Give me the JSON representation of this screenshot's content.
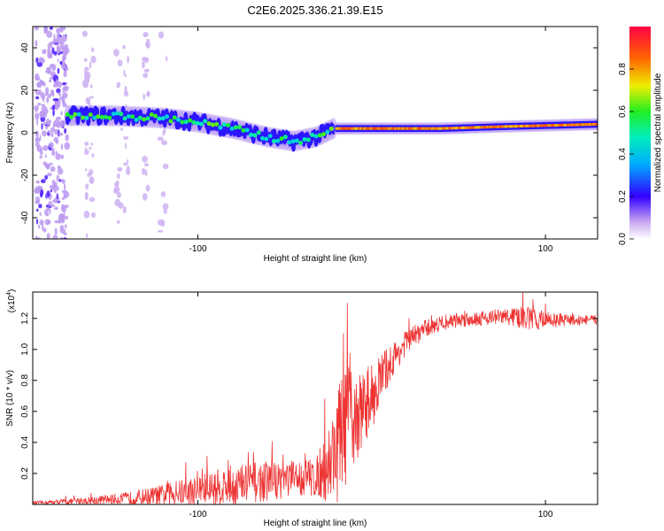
{
  "title": "C2E6.2025.336.21.39.E15",
  "chart_data": [
    {
      "type": "heatmap",
      "title": "C2E6.2025.336.21.39.E15",
      "xlabel": "Height of straight line (km)",
      "ylabel": "Frequency (Hz)",
      "xlim": [
        -195,
        130
      ],
      "ylim": [
        -50,
        50
      ],
      "xticks": [
        -100,
        100
      ],
      "yticks": [
        -40,
        -20,
        0,
        20,
        40
      ],
      "colorbar": {
        "label": "Normalized spectral amplitude",
        "range": [
          0,
          1
        ],
        "ticks": [
          0.0,
          0.2,
          0.4,
          0.6,
          0.8
        ]
      },
      "ridge": {
        "segments": [
          {
            "x": [
              -175,
              -150,
              -120,
              -100,
              -80,
              -60,
              -45,
              -32,
              -22
            ],
            "freq": [
              8,
              8,
              7,
              5,
              2,
              -2,
              -4,
              -2,
              2
            ],
            "amplitude": 0.55
          },
          {
            "x": [
              -20,
              0,
              40,
              80,
              130
            ],
            "freq": [
              2,
              2,
              2,
              3,
              4
            ],
            "amplitude": 0.9
          }
        ]
      }
    },
    {
      "type": "line",
      "xlabel": "Height of straight line (km)",
      "ylabel": "SNR (10 * v/v)",
      "yscale_label": "(x10",
      "yscale_exponent": "4",
      "xlim": [
        -195,
        130
      ],
      "ylim": [
        0,
        1.37
      ],
      "xticks": [
        -100,
        100
      ],
      "yticks": [
        0.2,
        0.4,
        0.6,
        0.8,
        1.0,
        1.2
      ],
      "color": "#ee3333",
      "envelope": {
        "x": [
          -195,
          -170,
          -140,
          -120,
          -100,
          -80,
          -60,
          -40,
          -30,
          -25,
          -20,
          -15,
          -10,
          -5,
          0,
          5,
          10,
          20,
          30,
          40,
          50,
          60,
          70,
          80,
          90,
          100,
          110,
          130
        ],
        "base": [
          0.01,
          0.02,
          0.04,
          0.06,
          0.09,
          0.12,
          0.15,
          0.17,
          0.18,
          0.25,
          0.38,
          0.5,
          0.55,
          0.62,
          0.7,
          0.8,
          0.9,
          1.05,
          1.13,
          1.17,
          1.19,
          1.2,
          1.21,
          1.21,
          1.2,
          1.19,
          1.19,
          1.19
        ],
        "noise": [
          0.01,
          0.02,
          0.04,
          0.07,
          0.1,
          0.14,
          0.13,
          0.12,
          0.14,
          0.25,
          0.38,
          0.4,
          0.3,
          0.25,
          0.22,
          0.18,
          0.12,
          0.08,
          0.06,
          0.05,
          0.05,
          0.05,
          0.05,
          0.06,
          0.08,
          0.06,
          0.04,
          0.03
        ]
      }
    }
  ]
}
